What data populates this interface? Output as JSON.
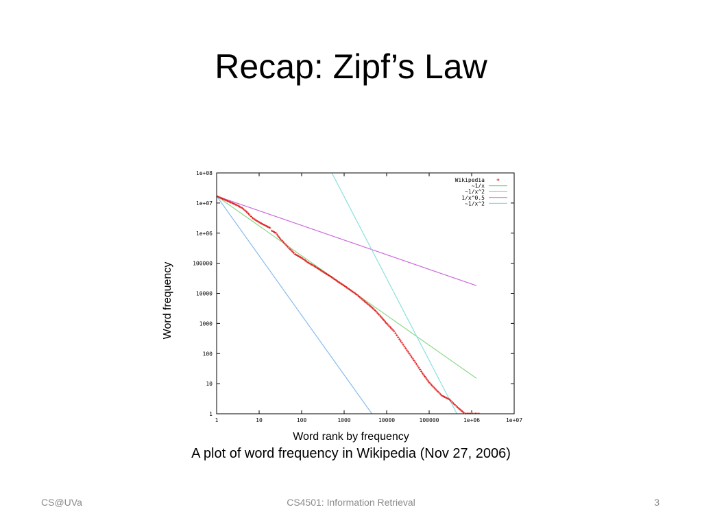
{
  "slide": {
    "title": "Recap: Zipf’s Law",
    "caption": "A plot of word frequency in Wikipedia (Nov 27, 2006)",
    "footer_left": "CS@UVa",
    "footer_center": "CS4501: Information Retrieval",
    "page_number": "3"
  },
  "colors": {
    "wikipedia": "#e02020",
    "inv_x": "#88d888",
    "inv_x2": "#88bbee",
    "inv_x05": "#cc66dd",
    "inv_x2_b": "#88e0e0"
  },
  "chart_data": {
    "type": "scatter",
    "xlabel": "Word rank by frequency",
    "ylabel": "Word frequency",
    "x_scale": "log",
    "y_scale": "log",
    "xlim": [
      1,
      10000000
    ],
    "ylim": [
      1,
      100000000
    ],
    "x_tick_labels": [
      "1",
      "10",
      "100",
      "1000",
      "10000",
      "100000",
      "1e+06",
      "1e+07"
    ],
    "y_tick_labels": [
      "1",
      "10",
      "100",
      "1000",
      "10000",
      "100000",
      "1e+06",
      "1e+07",
      "1e+08"
    ],
    "legend_position": "top-right",
    "series": [
      {
        "name": "Wikipedia",
        "kind": "points",
        "x": [
          1,
          2,
          3,
          4,
          5,
          6,
          7,
          8,
          10,
          12,
          15,
          18,
          20,
          25,
          30,
          40,
          50,
          70,
          100,
          150,
          200,
          300,
          500,
          700,
          1000,
          1500,
          2000,
          3000,
          5000,
          7000,
          10000,
          15000,
          20000,
          30000,
          50000,
          70000,
          100000,
          150000,
          200000,
          300000,
          400000,
          500000,
          600000,
          700000,
          1000000,
          1500000
        ],
        "y": [
          17000000,
          11000000,
          8500000,
          6800000,
          5200000,
          4000000,
          3200000,
          2800000,
          2300000,
          2000000,
          1700000,
          1500000,
          1200000,
          1000000,
          700000,
          450000,
          320000,
          200000,
          150000,
          100000,
          80000,
          55000,
          35000,
          25000,
          18000,
          12000,
          9000,
          5500,
          3000,
          1800,
          1000,
          550,
          300,
          130,
          45,
          22,
          11,
          6,
          4,
          3,
          2,
          1.5,
          1.2,
          1,
          1,
          1
        ]
      },
      {
        "name": "~1/x",
        "kind": "line",
        "x": [
          1,
          1300000
        ],
        "y": [
          17000000,
          15
        ]
      },
      {
        "name": "~1/x^2",
        "kind": "line",
        "x": [
          1,
          4500
        ],
        "y": [
          17000000,
          1
        ]
      },
      {
        "name": "1/x^0.5",
        "kind": "line",
        "x": [
          1,
          1300000
        ],
        "y": [
          17000000,
          18000
        ]
      },
      {
        "name": "~1/x^2",
        "kind": "line",
        "x": [
          45,
          450000
        ],
        "y": [
          75000000000,
          1
        ]
      }
    ]
  }
}
